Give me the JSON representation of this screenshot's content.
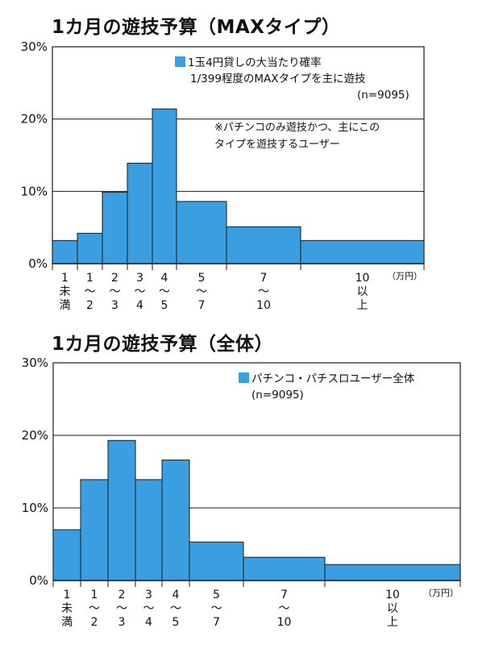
{
  "chart_data": [
    {
      "type": "bar",
      "title": "1カ月の遊技予算（MAXタイプ）",
      "ylim": [
        0,
        30
      ],
      "yticks": [
        "0%",
        "10%",
        "20%",
        "30%"
      ],
      "unit": "（万円）",
      "bins": [
        {
          "label": [
            "1",
            "未",
            "満"
          ],
          "lower": 0,
          "upper": 1,
          "value": 3.2
        },
        {
          "label": [
            "1",
            "〜",
            "2"
          ],
          "lower": 1,
          "upper": 2,
          "value": 4.2
        },
        {
          "label": [
            "2",
            "〜",
            "3"
          ],
          "lower": 2,
          "upper": 3,
          "value": 9.9
        },
        {
          "label": [
            "3",
            "〜",
            "4"
          ],
          "lower": 3,
          "upper": 4,
          "value": 13.9
        },
        {
          "label": [
            "4",
            "〜",
            "5"
          ],
          "lower": 4,
          "upper": 5,
          "value": 21.4
        },
        {
          "label": [
            "5",
            "〜",
            "7"
          ],
          "lower": 5,
          "upper": 7,
          "value": 8.6
        },
        {
          "label": [
            "7",
            "〜",
            "10"
          ],
          "lower": 7,
          "upper": 10,
          "value": 5.1
        },
        {
          "label": [
            "10",
            "以",
            "上"
          ],
          "lower": 10,
          "upper": 15,
          "value": 3.2
        }
      ],
      "legend": {
        "color": "#3a9ee0",
        "lines": [
          "1玉4円貸しの大当たり確率",
          "1/399程度のMAXタイプを主に遊技",
          "(n=9095)"
        ]
      },
      "note": [
        "※パチンコのみ遊技かつ、主にこの",
        "タイプを遊技するユーザー"
      ]
    },
    {
      "type": "bar",
      "title": "1カ月の遊技予算（全体）",
      "ylim": [
        0,
        30
      ],
      "yticks": [
        "0%",
        "10%",
        "20%",
        "30%"
      ],
      "unit": "（万円）",
      "bins": [
        {
          "label": [
            "1",
            "未",
            "満"
          ],
          "lower": 0,
          "upper": 1,
          "value": 7.0
        },
        {
          "label": [
            "1",
            "〜",
            "2"
          ],
          "lower": 1,
          "upper": 2,
          "value": 13.9
        },
        {
          "label": [
            "2",
            "〜",
            "3"
          ],
          "lower": 2,
          "upper": 3,
          "value": 19.3
        },
        {
          "label": [
            "3",
            "〜",
            "4"
          ],
          "lower": 3,
          "upper": 4,
          "value": 13.9
        },
        {
          "label": [
            "4",
            "〜",
            "5"
          ],
          "lower": 4,
          "upper": 5,
          "value": 16.6
        },
        {
          "label": [
            "5",
            "〜",
            "7"
          ],
          "lower": 5,
          "upper": 7,
          "value": 5.3
        },
        {
          "label": [
            "7",
            "〜",
            "10"
          ],
          "lower": 7,
          "upper": 10,
          "value": 3.2
        },
        {
          "label": [
            "10",
            "以",
            "上"
          ],
          "lower": 10,
          "upper": 15,
          "value": 2.2
        }
      ],
      "legend": {
        "color": "#3a9ee0",
        "lines": [
          "パチンコ・パチスロユーザー全体",
          "(n=9095)"
        ]
      }
    }
  ],
  "colors": {
    "bar_fill": "#3a9ee0",
    "bar_stroke": "#1a1a1a",
    "gridline": "#1a1a1a"
  }
}
